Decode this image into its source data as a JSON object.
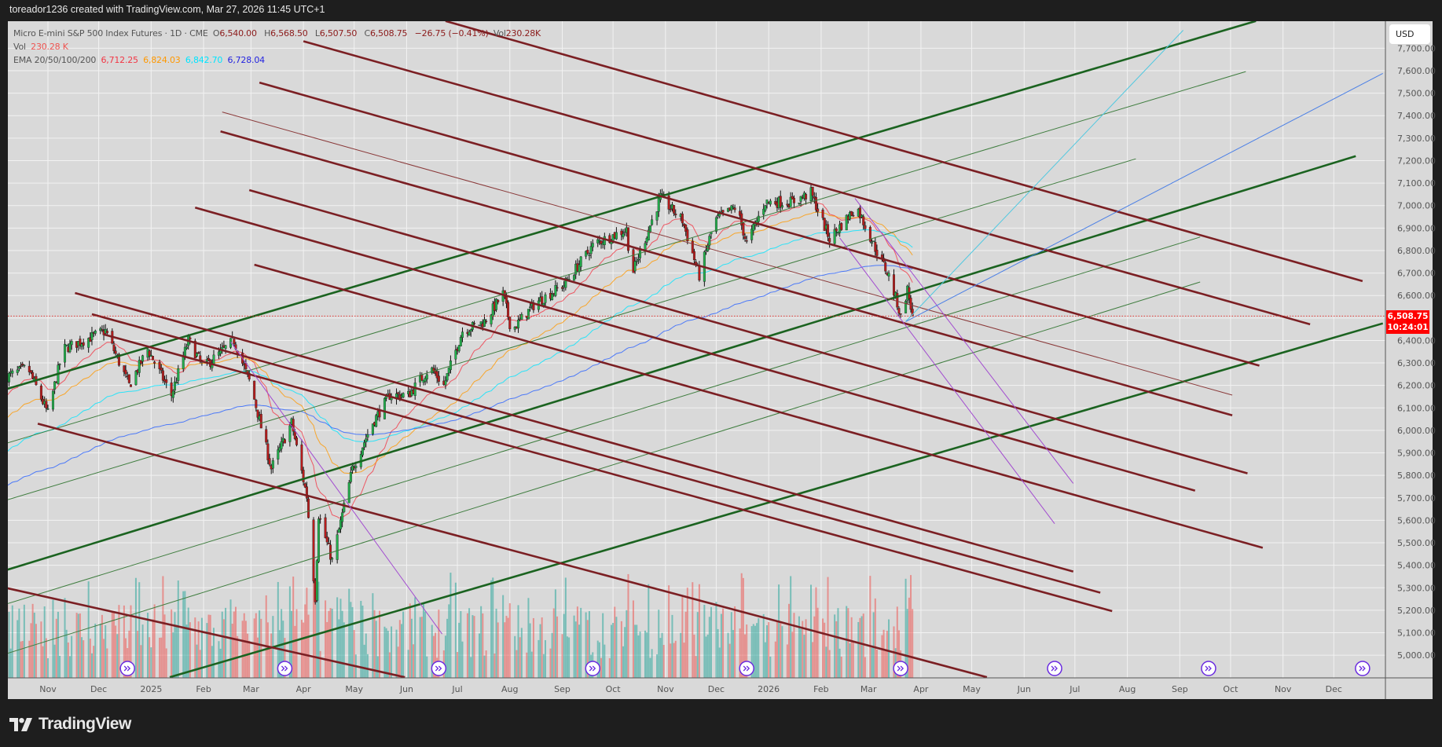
{
  "topbar": {
    "caption": "toreador1236 created with TradingView.com, Mar 27, 2026 11:45 UTC+1"
  },
  "legend": {
    "symbol": "Micro E-mini S&P 500 Index Futures · 1D · CME",
    "open_label": "O",
    "open": "6,540.00",
    "high_label": "H",
    "high": "6,568.50",
    "low_label": "L",
    "low": "6,507.50",
    "close_label": "C",
    "close": "6,508.75",
    "change": "−26.75 (−0.41%)",
    "vol_label": "Vol",
    "vol": "230.28K",
    "vol_row_label": "Vol",
    "vol_row_value": "230.28 K",
    "ema_label": "EMA 20/50/100/200",
    "ema20": "6,712.25",
    "ema50": "6,824.03",
    "ema100": "6,842.70",
    "ema200": "6,728.04"
  },
  "price_axis": {
    "currency": "USD",
    "current_price": "6,508.75",
    "countdown": "10:24:01",
    "ticks": [
      "7,700.00",
      "7,600.00",
      "7,500.00",
      "7,400.00",
      "7,300.00",
      "7,200.00",
      "7,100.00",
      "7,000.00",
      "6,900.00",
      "6,800.00",
      "6,700.00",
      "6,600.00",
      "6,400.00",
      "6,300.00",
      "6,200.00",
      "6,100.00",
      "6,000.00",
      "5,900.00",
      "5,800.00",
      "5,700.00",
      "5,600.00",
      "5,500.00",
      "5,400.00",
      "5,300.00",
      "5,200.00",
      "5,100.00",
      "5,000.00"
    ]
  },
  "branding": {
    "logo_text": "TradingView"
  },
  "chart_data": {
    "type": "candlestick",
    "interval": "1D",
    "last_bar": {
      "date": "2026-03-27",
      "open": 6540.0,
      "high": 6568.5,
      "low": 6507.5,
      "close": 6508.75,
      "volume": "230.28K"
    },
    "ylim": [
      4900,
      7820
    ],
    "y_ticks": [
      5000,
      5100,
      5200,
      5300,
      5400,
      5500,
      5600,
      5700,
      5800,
      5900,
      6000,
      6100,
      6200,
      6300,
      6400,
      6500,
      6600,
      6700,
      6800,
      6900,
      7000,
      7100,
      7200,
      7300,
      7400,
      7500,
      7600,
      7700
    ],
    "x_ticks": [
      {
        "date": "2024-11-01",
        "label": "Nov"
      },
      {
        "date": "2024-12-01",
        "label": "Dec"
      },
      {
        "date": "2025-01-01",
        "label": "2025"
      },
      {
        "date": "2025-02-01",
        "label": "Feb"
      },
      {
        "date": "2025-03-01",
        "label": "Mar"
      },
      {
        "date": "2025-04-01",
        "label": "Apr"
      },
      {
        "date": "2025-05-01",
        "label": "May"
      },
      {
        "date": "2025-06-01",
        "label": "Jun"
      },
      {
        "date": "2025-07-01",
        "label": "Jul"
      },
      {
        "date": "2025-08-01",
        "label": "Aug"
      },
      {
        "date": "2025-09-01",
        "label": "Sep"
      },
      {
        "date": "2025-10-01",
        "label": "Oct"
      },
      {
        "date": "2025-11-01",
        "label": "Nov"
      },
      {
        "date": "2025-12-01",
        "label": "Dec"
      },
      {
        "date": "2026-01-01",
        "label": "2026"
      },
      {
        "date": "2026-02-01",
        "label": "Feb"
      },
      {
        "date": "2026-03-01",
        "label": "Mar"
      },
      {
        "date": "2026-04-01",
        "label": "Apr"
      },
      {
        "date": "2026-05-01",
        "label": "May"
      },
      {
        "date": "2026-06-01",
        "label": "Jun"
      },
      {
        "date": "2026-07-01",
        "label": "Jul"
      },
      {
        "date": "2026-08-01",
        "label": "Aug"
      },
      {
        "date": "2026-09-01",
        "label": "Sep"
      },
      {
        "date": "2026-10-01",
        "label": "Oct"
      },
      {
        "date": "2026-11-01",
        "label": "Nov"
      },
      {
        "date": "2026-12-01",
        "label": "Dec"
      }
    ],
    "approx_closes": [
      [
        "2024-10-08",
        6239
      ],
      [
        "2024-10-20",
        6280
      ],
      [
        "2024-11-01",
        6075
      ],
      [
        "2024-11-10",
        6361
      ],
      [
        "2024-12-05",
        6443
      ],
      [
        "2024-12-19",
        6200
      ],
      [
        "2024-12-30",
        6361
      ],
      [
        "2025-01-13",
        6157
      ],
      [
        "2025-01-23",
        6400
      ],
      [
        "2025-02-01",
        6280
      ],
      [
        "2025-02-19",
        6400
      ],
      [
        "2025-03-01",
        6200
      ],
      [
        "2025-03-13",
        5830
      ],
      [
        "2025-03-25",
        6034
      ],
      [
        "2025-04-03",
        5707
      ],
      [
        "2025-04-08",
        5257
      ],
      [
        "2025-04-10",
        5625
      ],
      [
        "2025-04-18",
        5420
      ],
      [
        "2025-04-30",
        5830
      ],
      [
        "2025-05-12",
        6034
      ],
      [
        "2025-05-22",
        6157
      ],
      [
        "2025-06-02",
        6157
      ],
      [
        "2025-06-15",
        6280
      ],
      [
        "2025-06-23",
        6200
      ],
      [
        "2025-07-04",
        6443
      ],
      [
        "2025-07-17",
        6484
      ],
      [
        "2025-07-28",
        6607
      ],
      [
        "2025-08-02",
        6443
      ],
      [
        "2025-08-16",
        6566
      ],
      [
        "2025-09-02",
        6648
      ],
      [
        "2025-09-20",
        6831
      ],
      [
        "2025-10-09",
        6893
      ],
      [
        "2025-10-12",
        6688
      ],
      [
        "2025-10-20",
        6852
      ],
      [
        "2025-10-29",
        7036
      ],
      [
        "2025-11-11",
        6934
      ],
      [
        "2025-11-21",
        6688
      ],
      [
        "2025-11-30",
        6934
      ],
      [
        "2025-12-13",
        6995
      ],
      [
        "2025-12-19",
        6831
      ],
      [
        "2025-12-30",
        7016
      ],
      [
        "2026-01-15",
        7016
      ],
      [
        "2026-01-26",
        7056
      ],
      [
        "2026-02-06",
        6852
      ],
      [
        "2026-02-22",
        6995
      ],
      [
        "2026-03-05",
        6811
      ],
      [
        "2026-03-13",
        6688
      ],
      [
        "2026-03-18",
        6566
      ],
      [
        "2026-03-20",
        6504
      ],
      [
        "2026-03-24",
        6627
      ],
      [
        "2026-03-27",
        6508.75
      ]
    ],
    "ema_colors": {
      "ema20": "#f23645",
      "ema50": "#ff9800",
      "ema100": "#00e5ff",
      "ema200": "#2962ff"
    },
    "candle_colors": {
      "up": "#089981",
      "down": "#b71c1c",
      "up_body": "#22b14c",
      "vol_up": "#26a69a",
      "vol_down": "#ef5350"
    },
    "rollover_markers": [
      "2024-12-18",
      "2025-03-21",
      "2025-06-20",
      "2025-09-19",
      "2025-12-19",
      "2026-03-20",
      "2026-06-19",
      "2026-09-18",
      "2026-12-18"
    ],
    "drawings": [
      {
        "kind": "trend-thick-green",
        "from": [
          "2024-10-08",
          6185
        ],
        "to": [
          "2026-10-16",
          7821
        ]
      },
      {
        "kind": "trend-thick-green",
        "from": [
          "2024-10-08",
          5380
        ],
        "to": [
          "2026-12-14",
          7220
        ]
      },
      {
        "kind": "trend-thick-green",
        "from": [
          "2025-01-12",
          4902
        ],
        "to": [
          "2026-12-30",
          6476
        ]
      },
      {
        "kind": "trend-thin-green",
        "from": [
          "2024-10-08",
          5944
        ],
        "to": [
          "2026-10-10",
          7596
        ]
      },
      {
        "kind": "trend-thin-green",
        "from": [
          "2024-10-08",
          5691
        ],
        "to": [
          "2026-08-06",
          7208
        ]
      },
      {
        "kind": "trend-thin-green",
        "from": [
          "2024-10-08",
          5229
        ],
        "to": [
          "2026-09-13",
          6860
        ]
      },
      {
        "kind": "trend-thin-green",
        "from": [
          "2024-10-08",
          5008
        ],
        "to": [
          "2026-09-13",
          6660
        ]
      },
      {
        "kind": "trend-thick-red",
        "from": [
          "2025-06-24",
          7821
        ],
        "to": [
          "2026-12-18",
          6664
        ]
      },
      {
        "kind": "trend-thick-red",
        "from": [
          "2025-04-01",
          7731
        ],
        "to": [
          "2026-11-17",
          6472
        ]
      },
      {
        "kind": "trend-thick-red",
        "from": [
          "2025-03-06",
          7547
        ],
        "to": [
          "2026-10-18",
          6288
        ]
      },
      {
        "kind": "trend-thin-red",
        "from": [
          "2025-02-12",
          7416
        ],
        "to": [
          "2026-10-02",
          6157
        ]
      },
      {
        "kind": "trend-thick-red",
        "from": [
          "2025-02-11",
          7330
        ],
        "to": [
          "2026-10-02",
          6067
        ]
      },
      {
        "kind": "trend-thick-red",
        "from": [
          "2025-02-28",
          7069
        ],
        "to": [
          "2026-10-11",
          5809
        ]
      },
      {
        "kind": "trend-thick-red",
        "from": [
          "2025-01-27",
          6991
        ],
        "to": [
          "2026-09-10",
          5732
        ]
      },
      {
        "kind": "trend-thick-red",
        "from": [
          "2025-03-03",
          6737
        ],
        "to": [
          "2026-10-20",
          5478
        ]
      },
      {
        "kind": "trend-thick-red",
        "from": [
          "2024-11-17",
          6611
        ],
        "to": [
          "2026-06-30",
          5372
        ]
      },
      {
        "kind": "trend-thick-red",
        "from": [
          "2024-11-27",
          6517
        ],
        "to": [
          "2026-07-16",
          5278
        ]
      },
      {
        "kind": "trend-thick-red",
        "from": [
          "2024-12-04",
          6427
        ],
        "to": [
          "2026-07-23",
          5196
        ]
      },
      {
        "kind": "trend-thick-red",
        "from": [
          "2024-10-26",
          6030
        ],
        "to": [
          "2026-05-10",
          4902
        ]
      },
      {
        "kind": "trend-thick-red",
        "from": [
          "2024-10-08",
          5298
        ],
        "to": [
          "2025-05-31",
          4902
        ]
      },
      {
        "kind": "trend-purple",
        "from": [
          "2025-02-17",
          6394
        ],
        "to": [
          "2025-06-22",
          5094
        ]
      },
      {
        "kind": "trend-purple",
        "from": [
          "2026-02-21",
          7032
        ],
        "to": [
          "2026-06-30",
          5764
        ]
      },
      {
        "kind": "trend-purple",
        "from": [
          "2026-02-12",
          6856
        ],
        "to": [
          "2026-06-19",
          5585
        ]
      },
      {
        "kind": "ray-cyan",
        "from": [
          "2026-03-23",
          6484
        ],
        "to": [
          "2026-09-03",
          7780
        ]
      },
      {
        "kind": "ray-blue",
        "from": [
          "2026-03-23",
          6484
        ],
        "to": [
          "2026-12-30",
          7588
        ]
      }
    ],
    "drawing_colors": {
      "trend-thick-green": "#1b6320",
      "trend-thin-green": "#3f7d3f",
      "trend-thick-red": "#7b1f23",
      "trend-thin-red": "#8a3a3a",
      "trend-purple": "#a24bd0",
      "ray-cyan": "#4fc8e0",
      "ray-blue": "#4a7fe6"
    }
  }
}
